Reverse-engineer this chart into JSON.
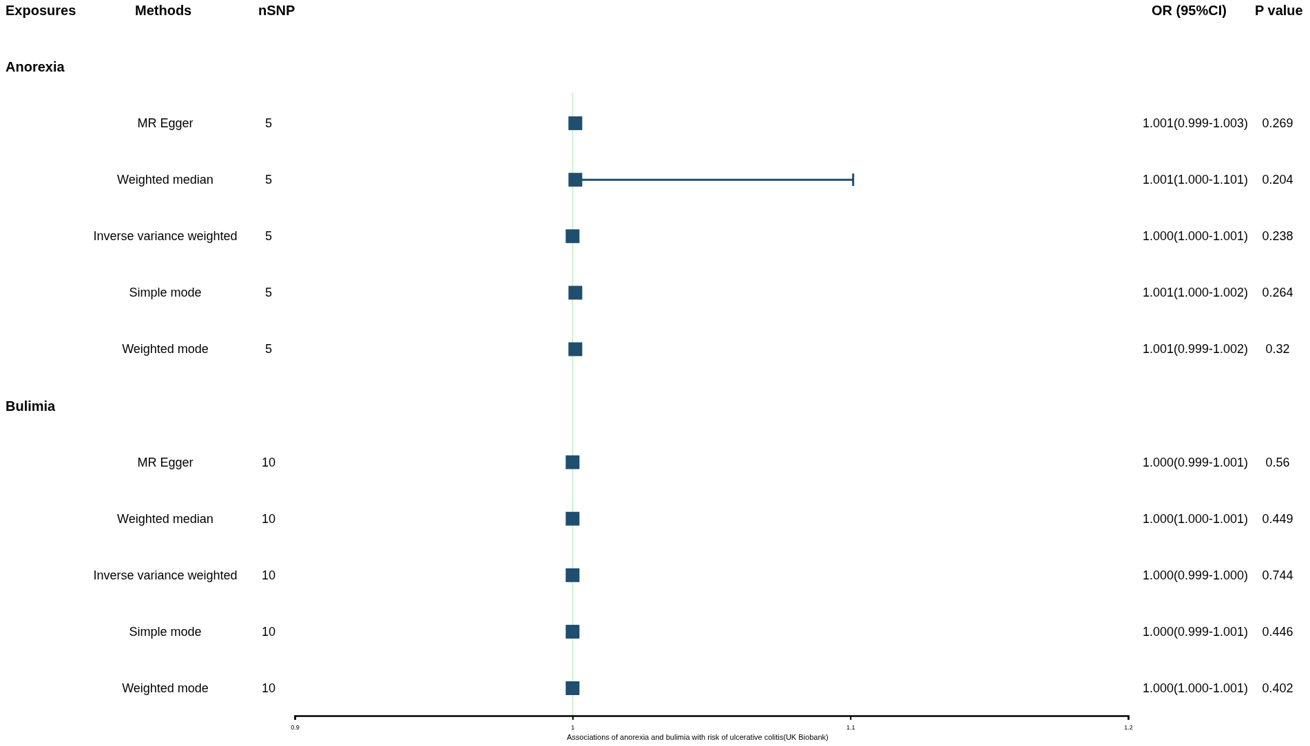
{
  "chart_data": {
    "type": "scatter",
    "orientation": "horizontal",
    "xlabel": "Associations of anorexia and bulimia with risk of ulcerative colitis(UK Biobank)",
    "categories": [
      null,
      "MR Egger",
      "Weighted median",
      "Inverse variance weighted",
      "Simple mode",
      "Weighted mode",
      null,
      "MR Egger",
      "Weighted median",
      "Inverse variance weighted",
      "Simple mode",
      "Weighted mode"
    ],
    "y2_categories": [
      null,
      "5",
      "5",
      "5",
      "5",
      "5",
      null,
      "10",
      "10",
      "10",
      "10",
      "10"
    ],
    "series": [
      {
        "color": "#1f4e6e",
        "values": [
          null,
          1.001,
          1.001,
          1.0,
          1.001,
          1.001,
          null,
          1.0,
          1.0,
          1.0,
          1.0,
          1.0
        ],
        "errors": [
          null,
          [
            0.999,
            1.003
          ],
          [
            1.0,
            1.101
          ],
          [
            1.0,
            1.001
          ],
          [
            1.0,
            1.002
          ],
          [
            0.999,
            1.002
          ],
          null,
          [
            0.999,
            1.001
          ],
          [
            1.0,
            1.001
          ],
          [
            0.999,
            1.0
          ],
          [
            0.999,
            1.001
          ],
          [
            1.0,
            1.001
          ]
        ],
        "value_labels": [
          null,
          "1.001(0.999-1.003)",
          "1.001(1.000-1.101)",
          "1.000(1.000-1.001)",
          "1.001(1.000-1.002)",
          "1.001(0.999-1.002)",
          null,
          "1.000(0.999-1.001)",
          "1.000(1.000-1.001)",
          "1.000(0.999-1.000)",
          "1.000(0.999-1.001)",
          "1.000(1.000-1.001)"
        ]
      }
    ],
    "annotations": [
      "Exposures",
      "Methods",
      "nSNP",
      "OR (95%CI)",
      "P value",
      "Anorexia",
      "Bulimia",
      "0.269",
      "0.204",
      "0.238",
      "0.264",
      "0.32",
      "0.56",
      "0.449",
      "0.744",
      "0.446",
      "0.402"
    ],
    "xlim": [
      0.9,
      1.2
    ],
    "xticks": [
      0.9,
      1,
      1.1,
      1.2
    ],
    "ref_lines": [
      {
        "axis": "x",
        "value": 1,
        "color": "#ccefcc"
      }
    ],
    "marker": "square",
    "grid": false
  }
}
